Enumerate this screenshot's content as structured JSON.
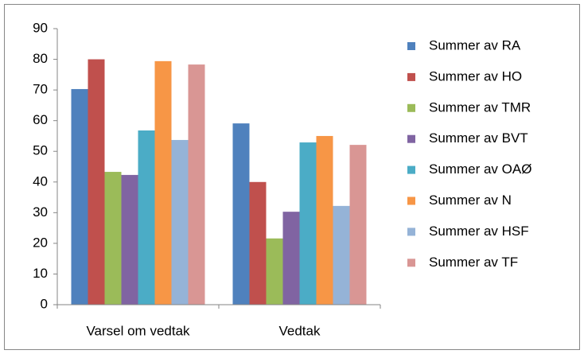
{
  "chart_data": {
    "type": "bar",
    "categories": [
      "Varsel om vedtak",
      "Vedtak"
    ],
    "series": [
      {
        "name": "Summer av RA",
        "color": "#4F81BD",
        "values": [
          70.3,
          59.1
        ]
      },
      {
        "name": "Summer av HO",
        "color": "#C0504D",
        "values": [
          80,
          40
        ]
      },
      {
        "name": "Summer av TMR",
        "color": "#9BBB59",
        "values": [
          43.3,
          21.6
        ]
      },
      {
        "name": "Summer av BVT",
        "color": "#8064A2",
        "values": [
          42.3,
          30.3
        ]
      },
      {
        "name": "Summer av OAØ",
        "color": "#4BACC6",
        "values": [
          56.8,
          52.9
        ]
      },
      {
        "name": "Summer av N",
        "color": "#F79646",
        "values": [
          79.4,
          55
        ]
      },
      {
        "name": "Summer av HSF",
        "color": "#95B3D7",
        "values": [
          53.7,
          32.2
        ]
      },
      {
        "name": "Summer av TF",
        "color": "#D99694",
        "values": [
          78.3,
          52.1
        ]
      }
    ],
    "ylim": [
      0,
      90
    ],
    "yticks": [
      0,
      10,
      20,
      30,
      40,
      50,
      60,
      70,
      80,
      90
    ],
    "grid": false,
    "legend": "right"
  }
}
